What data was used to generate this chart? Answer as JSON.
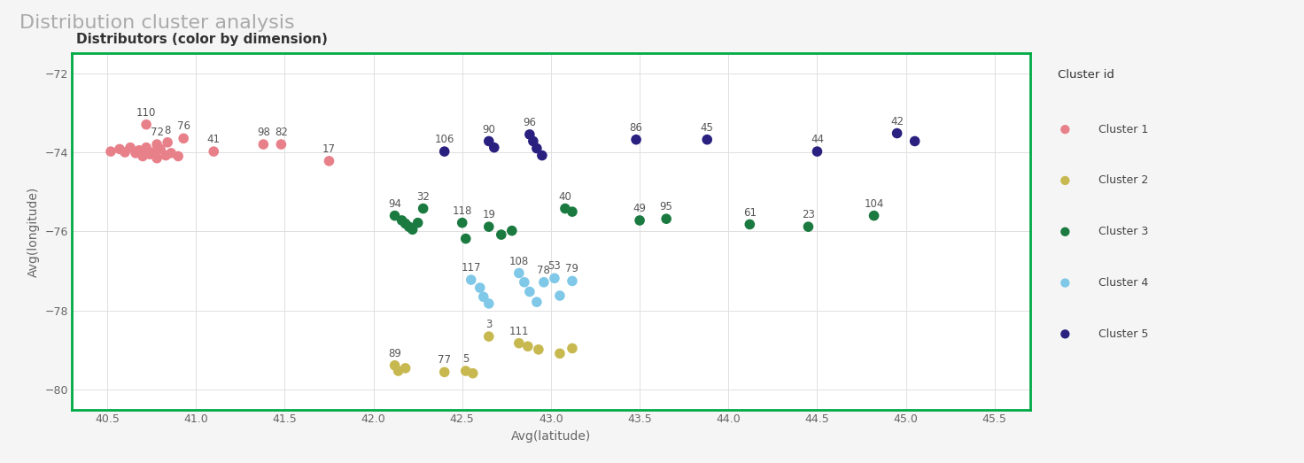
{
  "title": "Distribution cluster analysis",
  "subtitle": "Distributors (color by dimension)",
  "xlabel": "Avg(latitude)",
  "ylabel": "Avg(longitude)",
  "xlim": [
    40.3,
    45.7
  ],
  "ylim": [
    -80.5,
    -71.5
  ],
  "xticks": [
    40.5,
    41.0,
    41.5,
    42.0,
    42.5,
    43.0,
    43.5,
    44.0,
    44.5,
    45.0,
    45.5
  ],
  "yticks": [
    -72,
    -74,
    -76,
    -78,
    -80
  ],
  "cluster_colors": {
    "Cluster 1": "#E8808A",
    "Cluster 2": "#C8B850",
    "Cluster 3": "#1A7A40",
    "Cluster 4": "#80C8E8",
    "Cluster 5": "#2A2080"
  },
  "points": [
    {
      "id": "110",
      "lat": 40.72,
      "lon": -73.3,
      "cluster": "Cluster 1"
    },
    {
      "id": "72",
      "lat": 40.78,
      "lon": -73.8,
      "cluster": "Cluster 1"
    },
    {
      "id": "8",
      "lat": 40.84,
      "lon": -73.75,
      "cluster": "Cluster 1"
    },
    {
      "id": "76",
      "lat": 40.93,
      "lon": -73.65,
      "cluster": "Cluster 1"
    },
    {
      "id": "41",
      "lat": 41.1,
      "lon": -73.98,
      "cluster": "Cluster 1"
    },
    {
      "id": "98",
      "lat": 41.38,
      "lon": -73.8,
      "cluster": "Cluster 1"
    },
    {
      "id": "82",
      "lat": 41.48,
      "lon": -73.8,
      "cluster": "Cluster 1"
    },
    {
      "id": "17",
      "lat": 41.75,
      "lon": -74.22,
      "cluster": "Cluster 1"
    },
    {
      "id": "a1",
      "lat": 40.52,
      "lon": -73.98,
      "cluster": "Cluster 1"
    },
    {
      "id": "a2",
      "lat": 40.57,
      "lon": -73.92,
      "cluster": "Cluster 1"
    },
    {
      "id": "a3",
      "lat": 40.6,
      "lon": -74.0,
      "cluster": "Cluster 1"
    },
    {
      "id": "a4",
      "lat": 40.63,
      "lon": -73.88,
      "cluster": "Cluster 1"
    },
    {
      "id": "a5",
      "lat": 40.66,
      "lon": -74.02,
      "cluster": "Cluster 1"
    },
    {
      "id": "a6",
      "lat": 40.68,
      "lon": -73.95,
      "cluster": "Cluster 1"
    },
    {
      "id": "a7",
      "lat": 40.7,
      "lon": -74.1,
      "cluster": "Cluster 1"
    },
    {
      "id": "a8",
      "lat": 40.72,
      "lon": -73.88,
      "cluster": "Cluster 1"
    },
    {
      "id": "a9",
      "lat": 40.74,
      "lon": -74.05,
      "cluster": "Cluster 1"
    },
    {
      "id": "a10",
      "lat": 40.76,
      "lon": -74.0,
      "cluster": "Cluster 1"
    },
    {
      "id": "a11",
      "lat": 40.78,
      "lon": -74.15,
      "cluster": "Cluster 1"
    },
    {
      "id": "a12",
      "lat": 40.8,
      "lon": -73.92,
      "cluster": "Cluster 1"
    },
    {
      "id": "a13",
      "lat": 40.83,
      "lon": -74.08,
      "cluster": "Cluster 1"
    },
    {
      "id": "a14",
      "lat": 40.86,
      "lon": -74.02,
      "cluster": "Cluster 1"
    },
    {
      "id": "a15",
      "lat": 40.9,
      "lon": -74.1,
      "cluster": "Cluster 1"
    },
    {
      "id": "89",
      "lat": 42.12,
      "lon": -79.38,
      "cluster": "Cluster 2"
    },
    {
      "id": "b1",
      "lat": 42.14,
      "lon": -79.52,
      "cluster": "Cluster 2"
    },
    {
      "id": "b2",
      "lat": 42.18,
      "lon": -79.45,
      "cluster": "Cluster 2"
    },
    {
      "id": "77",
      "lat": 42.4,
      "lon": -79.55,
      "cluster": "Cluster 2"
    },
    {
      "id": "5",
      "lat": 42.52,
      "lon": -79.52,
      "cluster": "Cluster 2"
    },
    {
      "id": "b3",
      "lat": 42.56,
      "lon": -79.58,
      "cluster": "Cluster 2"
    },
    {
      "id": "3",
      "lat": 42.65,
      "lon": -78.65,
      "cluster": "Cluster 2"
    },
    {
      "id": "111",
      "lat": 42.82,
      "lon": -78.82,
      "cluster": "Cluster 2"
    },
    {
      "id": "b4",
      "lat": 42.87,
      "lon": -78.9,
      "cluster": "Cluster 2"
    },
    {
      "id": "b5",
      "lat": 42.93,
      "lon": -78.98,
      "cluster": "Cluster 2"
    },
    {
      "id": "b6",
      "lat": 43.05,
      "lon": -79.08,
      "cluster": "Cluster 2"
    },
    {
      "id": "b7",
      "lat": 43.12,
      "lon": -78.95,
      "cluster": "Cluster 2"
    },
    {
      "id": "94",
      "lat": 42.12,
      "lon": -75.6,
      "cluster": "Cluster 3"
    },
    {
      "id": "32",
      "lat": 42.28,
      "lon": -75.42,
      "cluster": "Cluster 3"
    },
    {
      "id": "c1",
      "lat": 42.16,
      "lon": -75.72,
      "cluster": "Cluster 3"
    },
    {
      "id": "c2",
      "lat": 42.18,
      "lon": -75.8,
      "cluster": "Cluster 3"
    },
    {
      "id": "c3",
      "lat": 42.2,
      "lon": -75.88,
      "cluster": "Cluster 3"
    },
    {
      "id": "c4",
      "lat": 42.22,
      "lon": -75.95,
      "cluster": "Cluster 3"
    },
    {
      "id": "c5",
      "lat": 42.25,
      "lon": -75.78,
      "cluster": "Cluster 3"
    },
    {
      "id": "118",
      "lat": 42.5,
      "lon": -75.78,
      "cluster": "Cluster 3"
    },
    {
      "id": "c6",
      "lat": 42.52,
      "lon": -76.18,
      "cluster": "Cluster 3"
    },
    {
      "id": "19",
      "lat": 42.65,
      "lon": -75.88,
      "cluster": "Cluster 3"
    },
    {
      "id": "c7",
      "lat": 42.72,
      "lon": -76.08,
      "cluster": "Cluster 3"
    },
    {
      "id": "c8",
      "lat": 42.78,
      "lon": -75.98,
      "cluster": "Cluster 3"
    },
    {
      "id": "40",
      "lat": 43.08,
      "lon": -75.42,
      "cluster": "Cluster 3"
    },
    {
      "id": "c9",
      "lat": 43.12,
      "lon": -75.5,
      "cluster": "Cluster 3"
    },
    {
      "id": "49",
      "lat": 43.5,
      "lon": -75.72,
      "cluster": "Cluster 3"
    },
    {
      "id": "95",
      "lat": 43.65,
      "lon": -75.68,
      "cluster": "Cluster 3"
    },
    {
      "id": "61",
      "lat": 44.12,
      "lon": -75.82,
      "cluster": "Cluster 3"
    },
    {
      "id": "23",
      "lat": 44.45,
      "lon": -75.88,
      "cluster": "Cluster 3"
    },
    {
      "id": "104",
      "lat": 44.82,
      "lon": -75.6,
      "cluster": "Cluster 3"
    },
    {
      "id": "117",
      "lat": 42.55,
      "lon": -77.22,
      "cluster": "Cluster 4"
    },
    {
      "id": "d1",
      "lat": 42.6,
      "lon": -77.42,
      "cluster": "Cluster 4"
    },
    {
      "id": "d2",
      "lat": 42.62,
      "lon": -77.65,
      "cluster": "Cluster 4"
    },
    {
      "id": "d3",
      "lat": 42.65,
      "lon": -77.82,
      "cluster": "Cluster 4"
    },
    {
      "id": "108",
      "lat": 42.82,
      "lon": -77.05,
      "cluster": "Cluster 4"
    },
    {
      "id": "d4",
      "lat": 42.85,
      "lon": -77.28,
      "cluster": "Cluster 4"
    },
    {
      "id": "d5",
      "lat": 42.88,
      "lon": -77.52,
      "cluster": "Cluster 4"
    },
    {
      "id": "78",
      "lat": 42.96,
      "lon": -77.28,
      "cluster": "Cluster 4"
    },
    {
      "id": "53",
      "lat": 43.02,
      "lon": -77.18,
      "cluster": "Cluster 4"
    },
    {
      "id": "79",
      "lat": 43.12,
      "lon": -77.25,
      "cluster": "Cluster 4"
    },
    {
      "id": "d6",
      "lat": 43.05,
      "lon": -77.62,
      "cluster": "Cluster 4"
    },
    {
      "id": "d7",
      "lat": 42.92,
      "lon": -77.78,
      "cluster": "Cluster 4"
    },
    {
      "id": "106",
      "lat": 42.4,
      "lon": -73.98,
      "cluster": "Cluster 5"
    },
    {
      "id": "90",
      "lat": 42.65,
      "lon": -73.72,
      "cluster": "Cluster 5"
    },
    {
      "id": "e1",
      "lat": 42.68,
      "lon": -73.88,
      "cluster": "Cluster 5"
    },
    {
      "id": "96",
      "lat": 42.88,
      "lon": -73.55,
      "cluster": "Cluster 5"
    },
    {
      "id": "e2",
      "lat": 42.9,
      "lon": -73.72,
      "cluster": "Cluster 5"
    },
    {
      "id": "e3",
      "lat": 42.92,
      "lon": -73.9,
      "cluster": "Cluster 5"
    },
    {
      "id": "e4",
      "lat": 42.95,
      "lon": -74.08,
      "cluster": "Cluster 5"
    },
    {
      "id": "86",
      "lat": 43.48,
      "lon": -73.68,
      "cluster": "Cluster 5"
    },
    {
      "id": "45",
      "lat": 43.88,
      "lon": -73.68,
      "cluster": "Cluster 5"
    },
    {
      "id": "42",
      "lat": 44.95,
      "lon": -73.52,
      "cluster": "Cluster 5"
    },
    {
      "id": "e5",
      "lat": 45.05,
      "lon": -73.72,
      "cluster": "Cluster 5"
    },
    {
      "id": "44",
      "lat": 44.5,
      "lon": -73.98,
      "cluster": "Cluster 5"
    }
  ],
  "labeled_ids": [
    "110",
    "72",
    "8",
    "76",
    "41",
    "98",
    "82",
    "17",
    "106",
    "90",
    "96",
    "86",
    "45",
    "42",
    "44",
    "94",
    "32",
    "118",
    "19",
    "40",
    "49",
    "95",
    "61",
    "23",
    "104",
    "117",
    "108",
    "78",
    "53",
    "79",
    "89",
    "77",
    "5",
    "3",
    "111"
  ],
  "background_color": "#F5F5F5",
  "plot_bg_color": "#FFFFFF",
  "grid_color": "#E0E0E0",
  "border_color": "#00AA44",
  "title_color": "#AAAAAA",
  "subtitle_color": "#333333",
  "tick_color": "#666666",
  "label_color": "#555555",
  "title_fontsize": 16,
  "subtitle_fontsize": 11,
  "axis_label_fontsize": 10,
  "tick_fontsize": 9,
  "point_size": 70,
  "label_fontsize": 8.5
}
